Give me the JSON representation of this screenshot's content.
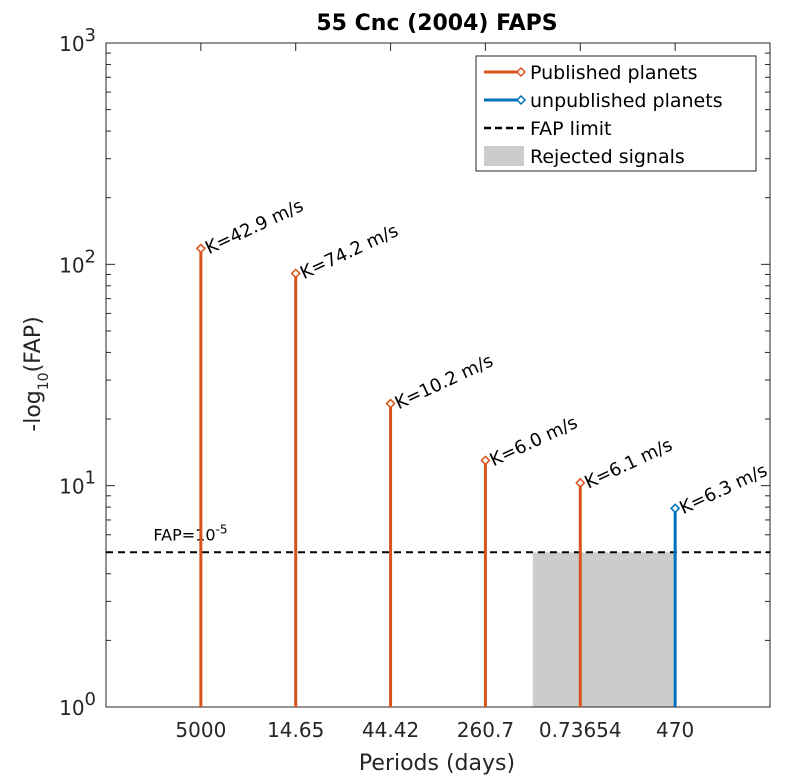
{
  "chart_data": {
    "type": "stem",
    "title": "55 Cnc (2004) FAPS",
    "xlabel": "Periods (days)",
    "ylabel": {
      "base": "-log",
      "sub": "10",
      "tail": "(FAP)"
    },
    "yscale": "log",
    "ylim": [
      1,
      1000
    ],
    "yticks": [
      {
        "value": 1,
        "base": "10",
        "exp": "0"
      },
      {
        "value": 10,
        "base": "10",
        "exp": "1"
      },
      {
        "value": 100,
        "base": "10",
        "exp": "2"
      },
      {
        "value": 1000,
        "base": "10",
        "exp": "3"
      }
    ],
    "categories": [
      "5000",
      "14.65",
      "44.42",
      "260.7",
      "0.73654",
      "470"
    ],
    "series": [
      {
        "name": "Published planets",
        "color": "#D95319",
        "points": [
          {
            "category": "5000",
            "value": 118,
            "label": "K=42.9 m/s"
          },
          {
            "category": "14.65",
            "value": 91,
            "label": "K=74.2 m/s"
          },
          {
            "category": "44.42",
            "value": 23.5,
            "label": "K=10.2 m/s"
          },
          {
            "category": "260.7",
            "value": 13,
            "label": "K=6.0 m/s"
          },
          {
            "category": "0.73654",
            "value": 10.3,
            "label": "K=6.1 m/s"
          }
        ]
      },
      {
        "name": "unpublished planets",
        "color": "#0072BD",
        "points": [
          {
            "category": "470",
            "value": 7.9,
            "label": "K=6.3 m/s"
          }
        ]
      }
    ],
    "fap_limit": {
      "name": "FAP limit",
      "value": 5,
      "label_base": "FAP=10",
      "label_exp": "-5"
    },
    "rejected_region": {
      "name": "Rejected signals",
      "color": "#CCCCCC",
      "x_from": 4.5,
      "x_to": 6.0,
      "y_to": 5
    },
    "legend_position": "top-right",
    "grid": false
  }
}
